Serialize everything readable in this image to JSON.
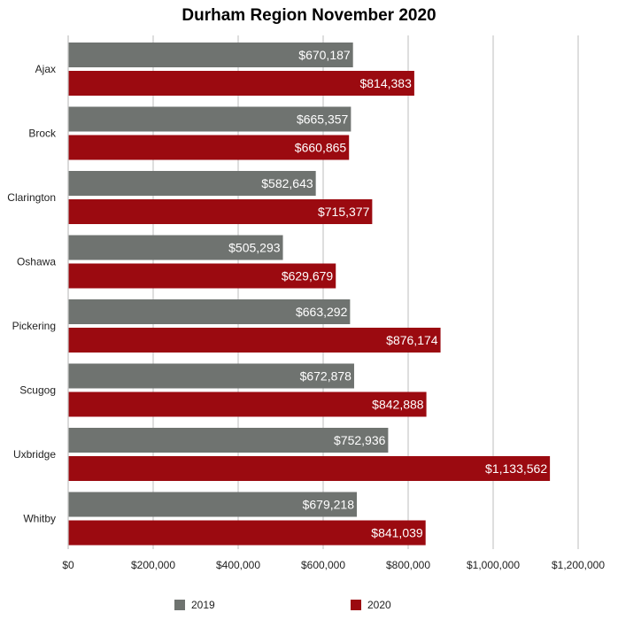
{
  "chart_data": {
    "type": "bar",
    "orientation": "horizontal",
    "title": "Durham Region November 2020",
    "categories": [
      "Ajax",
      "Brock",
      "Clarington",
      "Oshawa",
      "Pickering",
      "Scugog",
      "Uxbridge",
      "Whitby"
    ],
    "series": [
      {
        "name": "2019",
        "color": "#6f7370",
        "values": [
          670187,
          665357,
          582643,
          505293,
          663292,
          672878,
          752936,
          679218
        ],
        "labels": [
          "$670,187",
          "$665,357",
          "$582,643",
          "$505,293",
          "$663,292",
          "$672,878",
          "$752,936",
          "$679,218"
        ]
      },
      {
        "name": "2020",
        "color": "#9b0a10",
        "values": [
          814383,
          660865,
          715377,
          629679,
          876174,
          842888,
          1133562,
          841039
        ],
        "labels": [
          "$814,383",
          "$660,865",
          "$715,377",
          "$629,679",
          "$876,174",
          "$842,888",
          "$1,133,562",
          "$841,039"
        ]
      }
    ],
    "xlim": [
      0,
      1200000
    ],
    "xticks": [
      0,
      200000,
      400000,
      600000,
      800000,
      1000000,
      1200000
    ],
    "xtick_labels": [
      "$0",
      "$200,000",
      "$400,000",
      "$600,000",
      "$800,000",
      "$1,000,000",
      "$1,200,000"
    ],
    "xlabel": "",
    "ylabel": "",
    "grid": true,
    "legend_position": "bottom"
  }
}
